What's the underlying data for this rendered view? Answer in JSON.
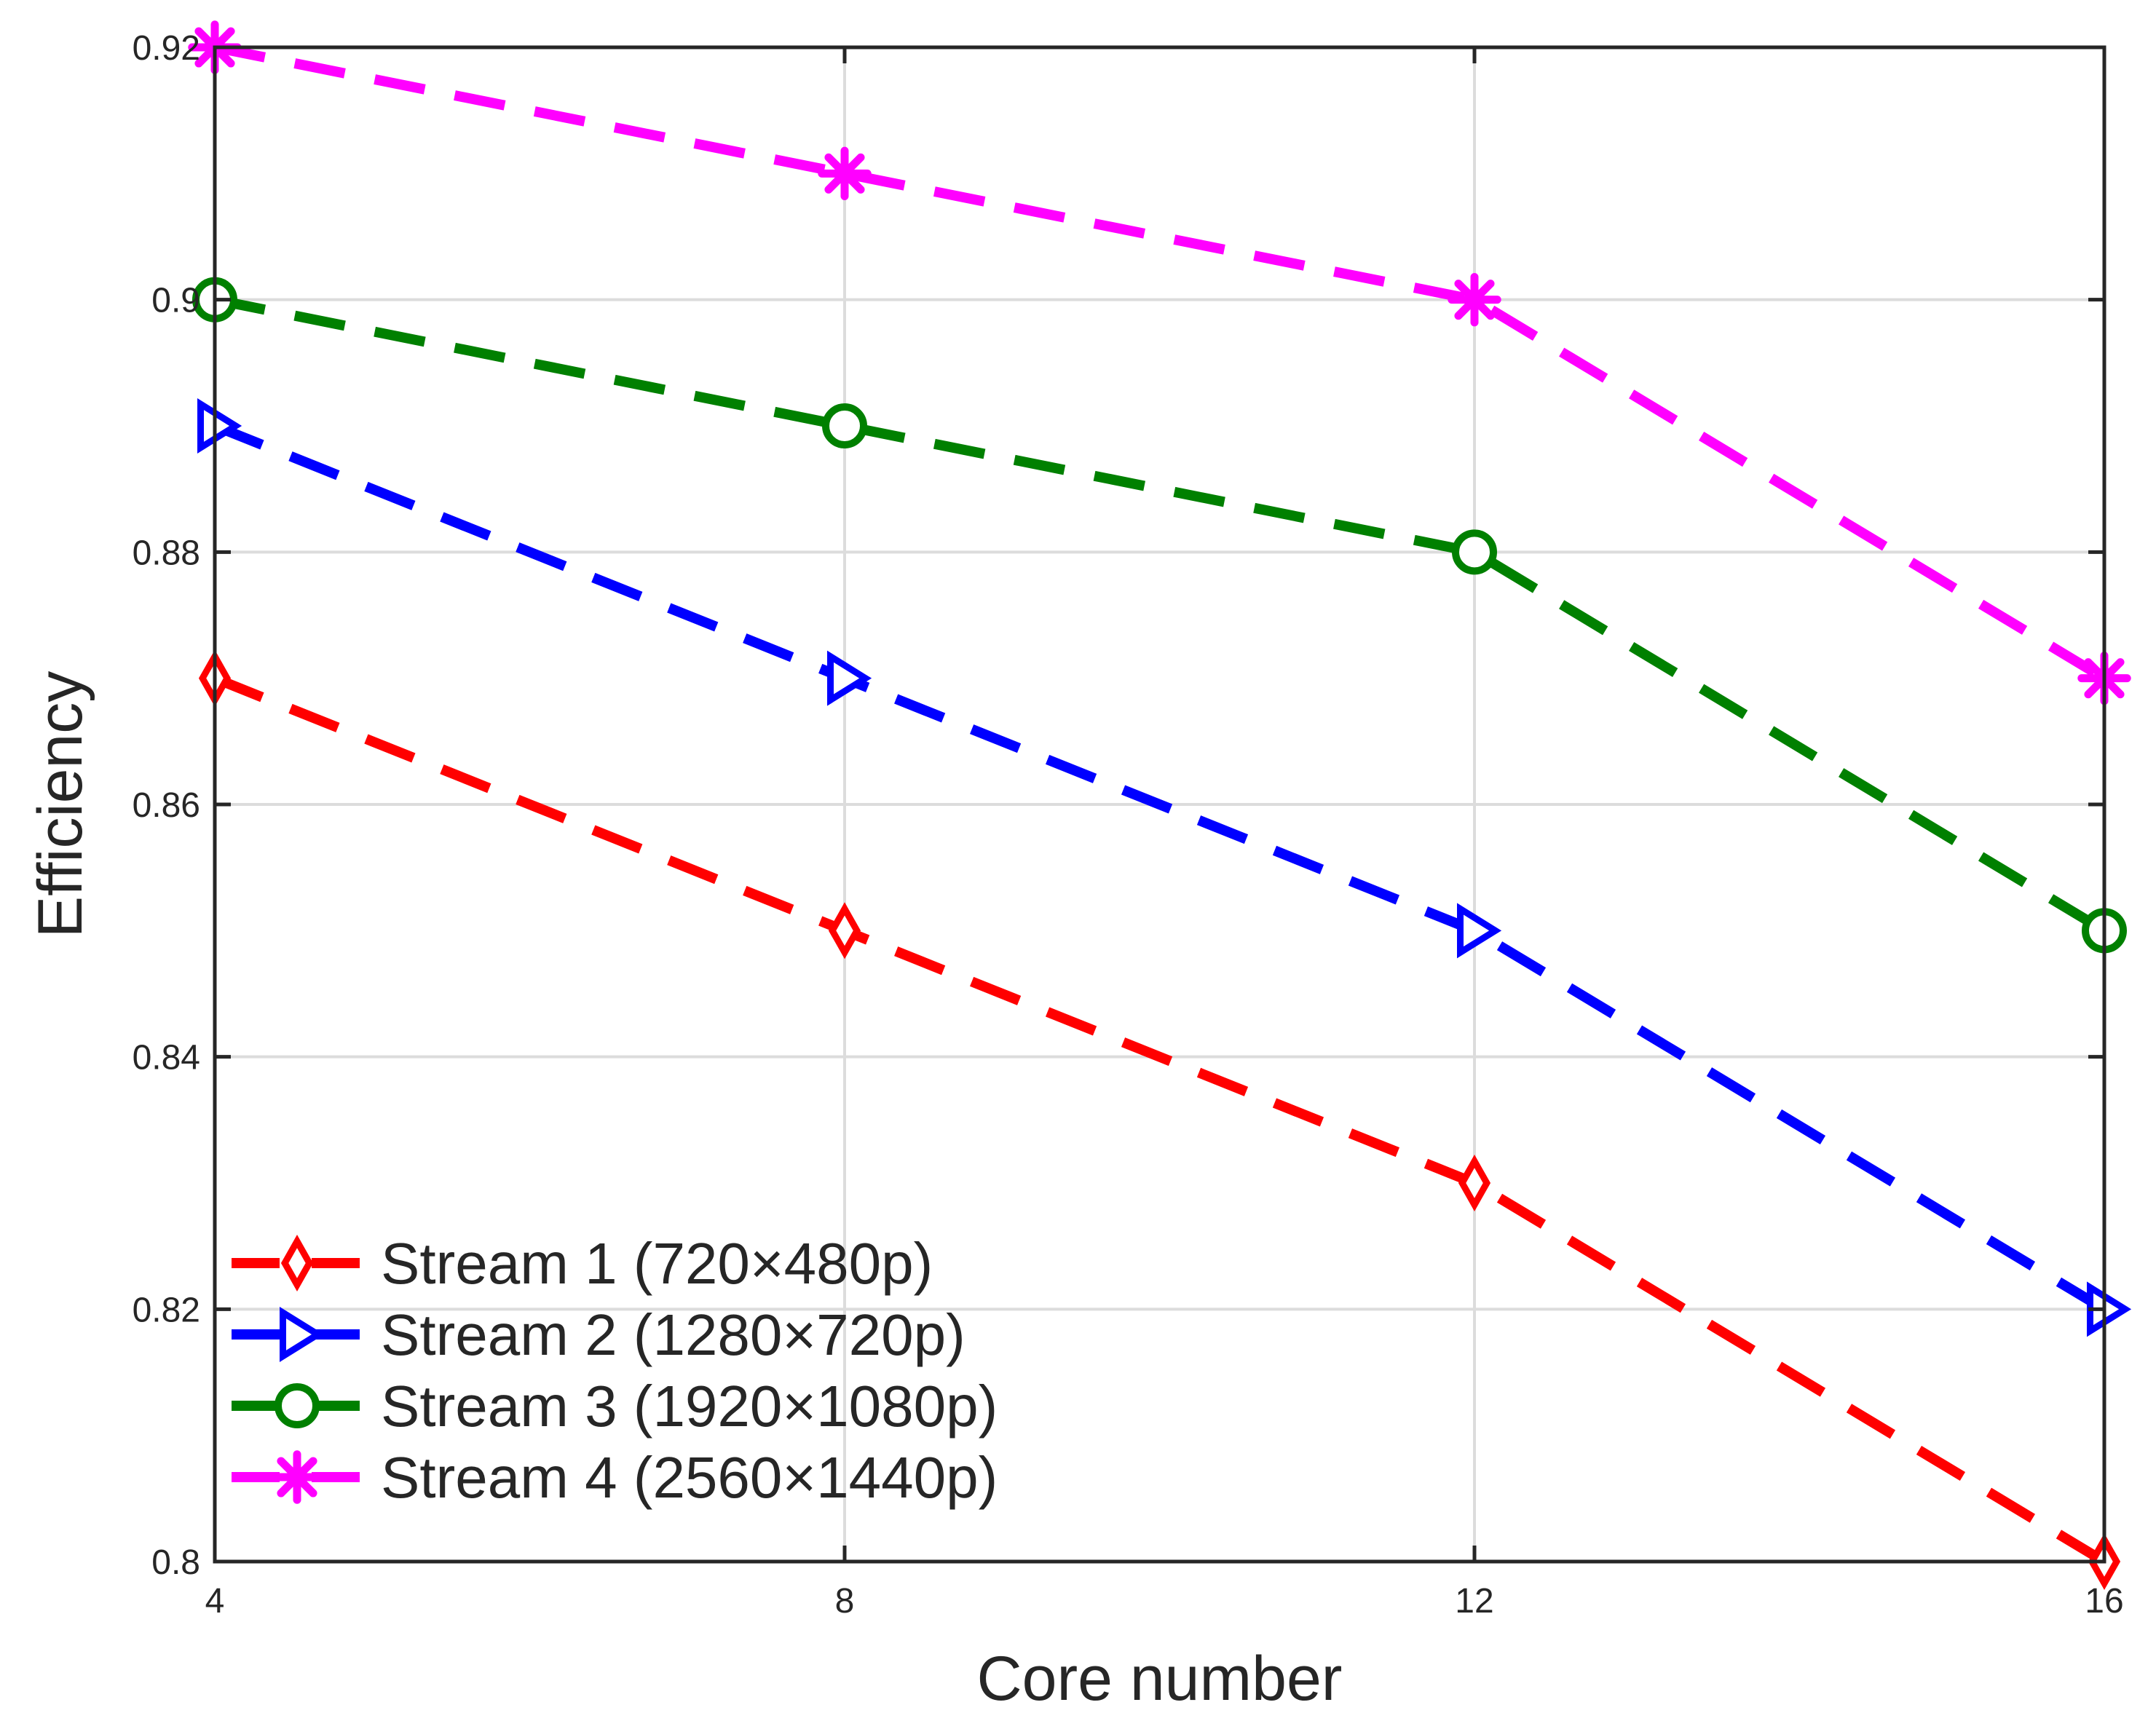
{
  "chart_data": {
    "type": "line",
    "title": "",
    "xlabel": "Core number",
    "ylabel": "Efficiency",
    "x": [
      4,
      8,
      12,
      16
    ],
    "xticks": [
      "4",
      "8",
      "12",
      "16"
    ],
    "yticks": [
      "0.8",
      "0.82",
      "0.84",
      "0.86",
      "0.88",
      "0.9",
      "0.92"
    ],
    "xlim": [
      4,
      16
    ],
    "ylim": [
      0.8,
      0.92
    ],
    "grid": true,
    "legend_position": "bottom-left",
    "series": [
      {
        "name": "Stream 1 (720×480p)",
        "values": [
          0.87,
          0.85,
          0.83,
          0.8
        ],
        "color": "#ff0000",
        "marker": "diamond",
        "linestyle": "dashed"
      },
      {
        "name": "Stream 2 (1280×720p)",
        "values": [
          0.89,
          0.87,
          0.85,
          0.82
        ],
        "color": "#0000ff",
        "marker": "triangle-right",
        "linestyle": "dashed"
      },
      {
        "name": "Stream 3 (1920×1080p)",
        "values": [
          0.9,
          0.89,
          0.88,
          0.85
        ],
        "color": "#008000",
        "marker": "circle",
        "linestyle": "dashed"
      },
      {
        "name": "Stream 4 (2560×1440p)",
        "values": [
          0.92,
          0.91,
          0.9,
          0.87
        ],
        "color": "#ff00ff",
        "marker": "asterisk",
        "linestyle": "dashed"
      }
    ]
  }
}
